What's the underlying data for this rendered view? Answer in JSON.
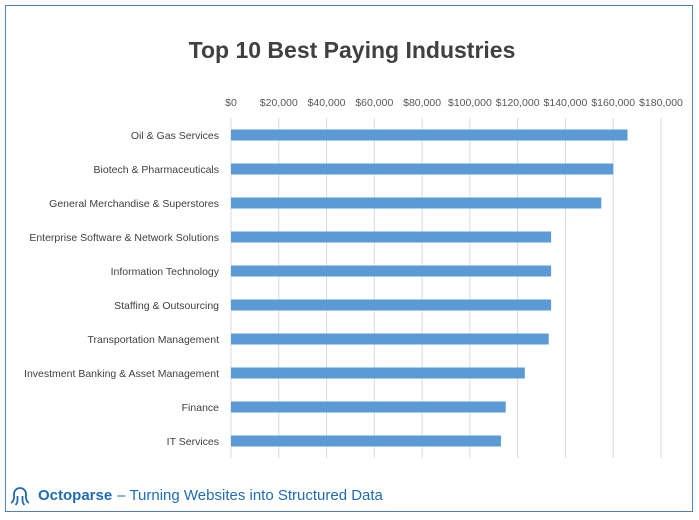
{
  "chart_data": {
    "type": "bar",
    "orientation": "horizontal",
    "title": "Top 10 Best Paying Industries",
    "xlabel": "",
    "ylabel": "",
    "categories": [
      "Oil & Gas Services",
      "Biotech & Pharmaceuticals",
      "General Merchandise & Superstores",
      "Enterprise Software & Network Solutions",
      "Information Technology",
      "Staffing & Outsourcing",
      "Transportation Management",
      "Investment Banking & Asset Management",
      "Finance",
      "IT Services"
    ],
    "values": [
      166000,
      160000,
      155000,
      134000,
      134000,
      134000,
      133000,
      123000,
      115000,
      113000
    ],
    "xlim": [
      0,
      180000
    ],
    "ticks": [
      0,
      20000,
      40000,
      60000,
      80000,
      100000,
      120000,
      140000,
      160000,
      180000
    ],
    "tick_labels": [
      "$0",
      "$20,000",
      "$40,000",
      "$60,000",
      "$80,000",
      "$100,000",
      "$120,000",
      "$140,000",
      "$160,000",
      "$180,000"
    ],
    "axis_position": "top",
    "grid": true,
    "bar_color": "#5b9bd5",
    "grid_color": "#d9d9d9"
  },
  "footer": {
    "logo_icon": "octopus-icon",
    "brand": "Octoparse",
    "tagline": "– Turning Websites into Structured Data",
    "color": "#1f6bb5"
  }
}
